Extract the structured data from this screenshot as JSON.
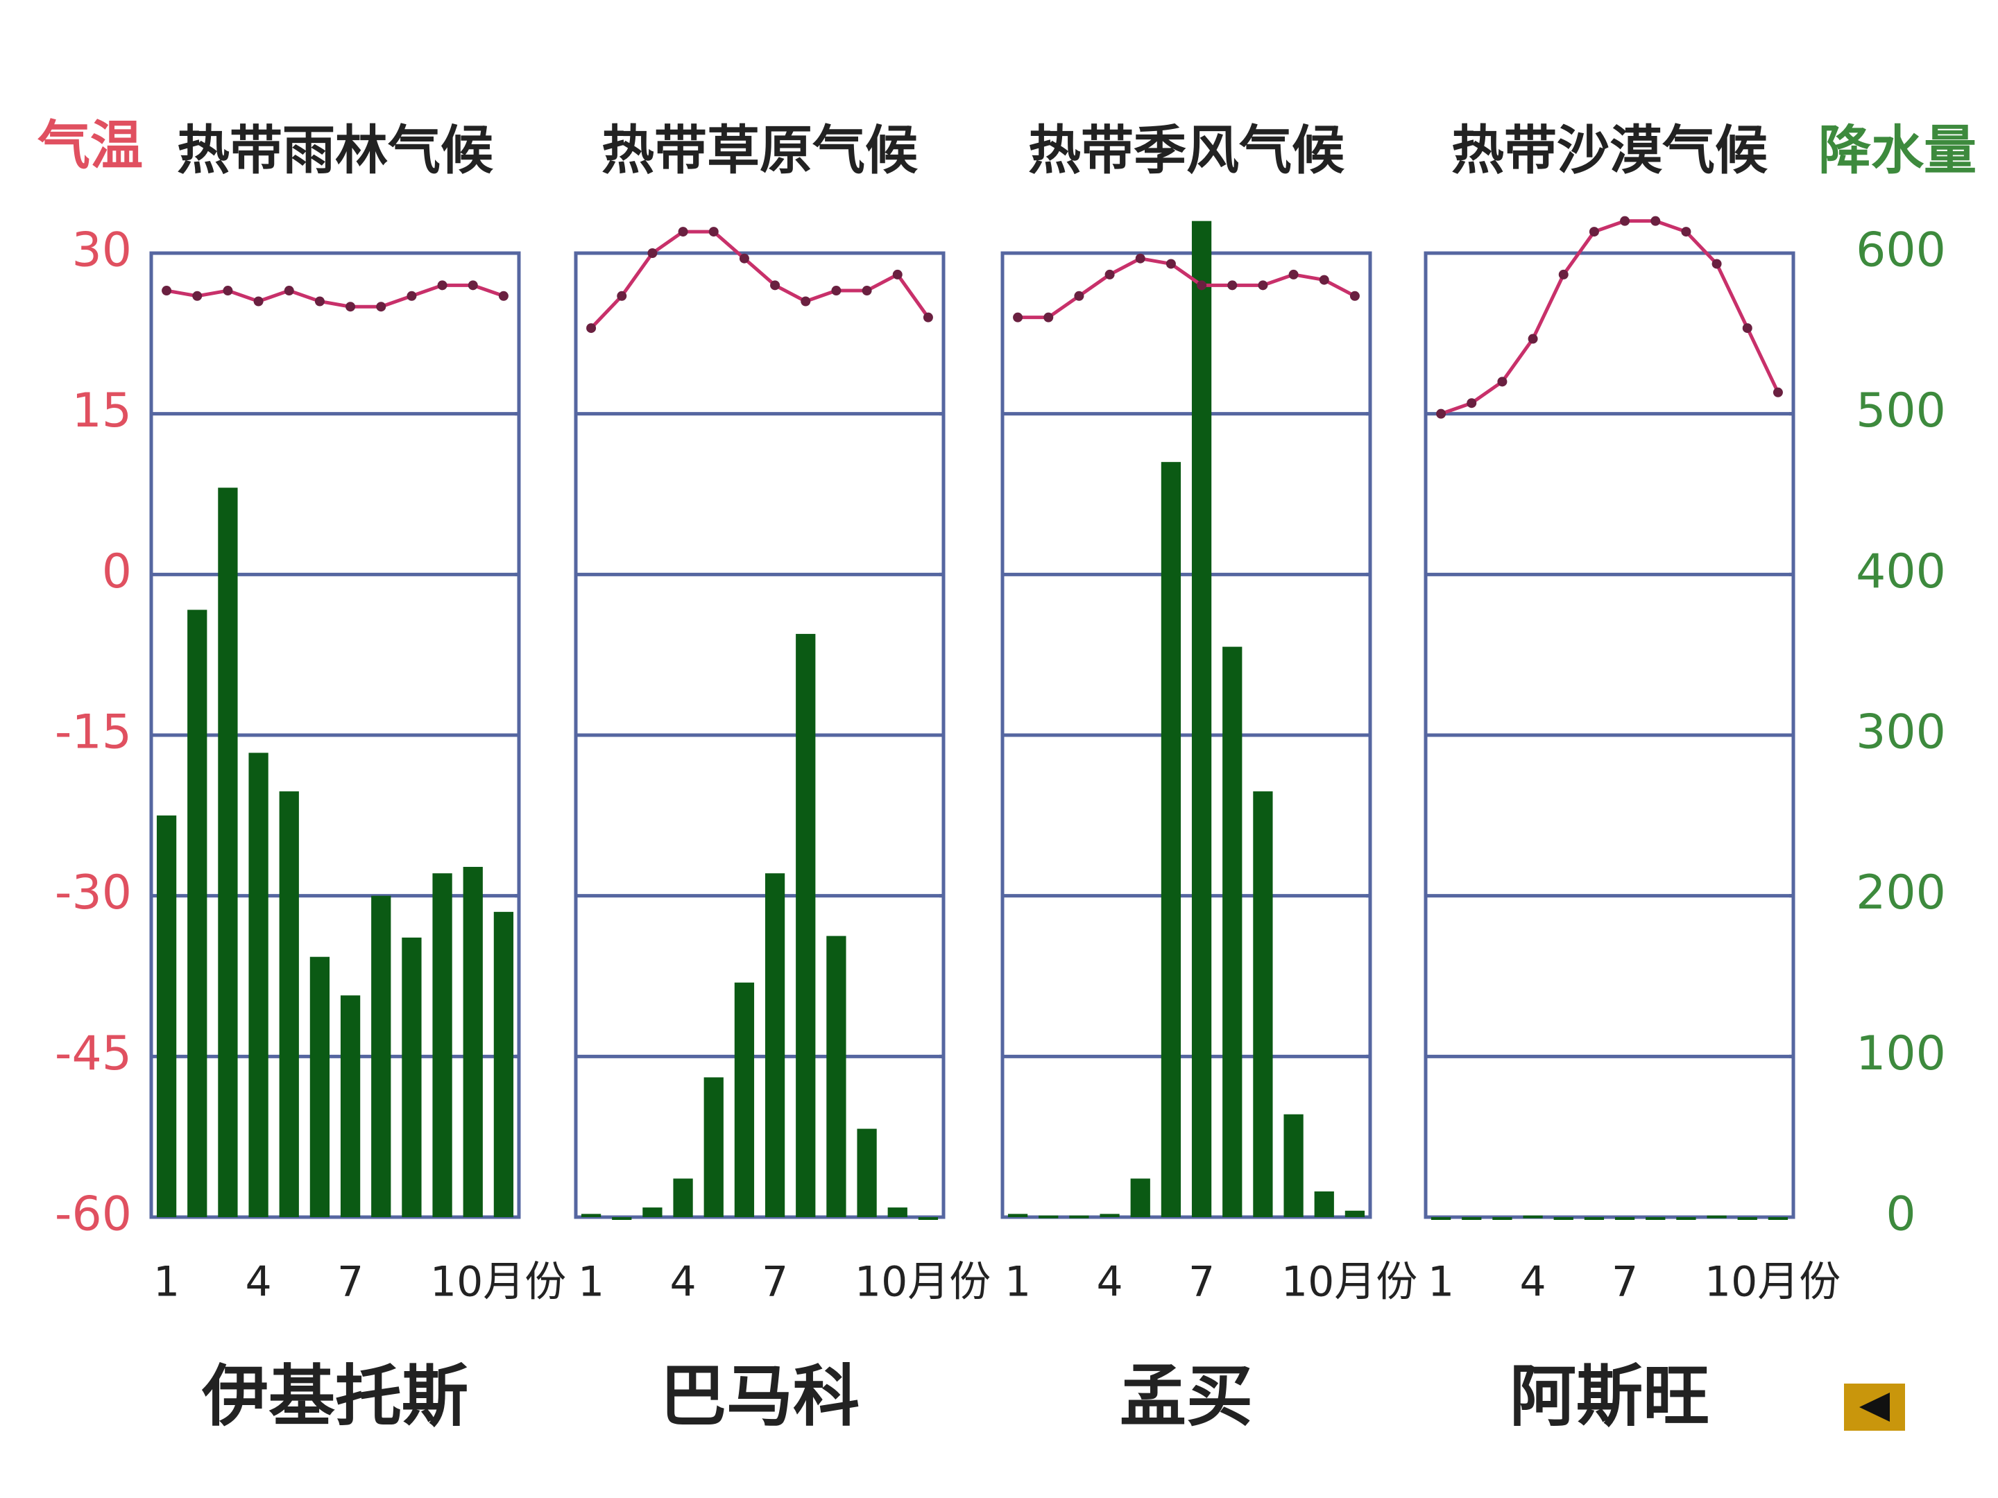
{
  "chart_data": [
    {
      "type": "bar",
      "title": "热带雨林气候",
      "city": "伊基托斯",
      "y_label": "气温",
      "categories": [
        "1",
        null,
        null,
        "4",
        null,
        null,
        "7",
        null,
        null,
        "10月份",
        null,
        null
      ],
      "series": [
        {
          "name": "降水量",
          "color": "#0b5a14",
          "axis": "y2",
          "values": [
            250,
            378,
            454,
            289,
            265,
            162,
            138,
            200,
            174,
            214,
            218,
            190
          ]
        },
        {
          "name": "气温",
          "color": "#c8306a",
          "axis": "y",
          "values": [
            26.5,
            26,
            26.5,
            25.5,
            26.5,
            25.5,
            25,
            25,
            26,
            27,
            27,
            26
          ]
        }
      ],
      "ylim": [
        -60,
        30
      ],
      "yticks": [
        -60,
        -45,
        -30,
        -15,
        0,
        15,
        30
      ],
      "y2lim": [
        0,
        600
      ],
      "y2ticks": [
        0,
        100,
        200,
        300,
        400,
        500,
        600
      ],
      "grid": true
    },
    {
      "type": "bar",
      "title": "热带草原气候",
      "city": "巴马科",
      "categories": [
        "1",
        null,
        null,
        "4",
        null,
        null,
        "7",
        null,
        null,
        "10月份",
        null,
        null
      ],
      "series": [
        {
          "name": "降水量",
          "color": "#0b5a14",
          "axis": "y2",
          "values": [
            2,
            0,
            6,
            24,
            87,
            146,
            214,
            363,
            175,
            55,
            6,
            0
          ]
        },
        {
          "name": "气温",
          "color": "#c8306a",
          "axis": "y",
          "values": [
            23,
            26,
            30,
            32,
            32,
            29.5,
            27,
            25.5,
            26.5,
            26.5,
            28,
            24
          ]
        }
      ],
      "ylim": [
        -60,
        30
      ],
      "yticks": [
        -60,
        -45,
        -30,
        -15,
        0,
        15,
        30
      ],
      "y2lim": [
        0,
        600
      ],
      "y2ticks": [
        0,
        100,
        200,
        300,
        400,
        500,
        600
      ],
      "grid": true
    },
    {
      "type": "bar",
      "title": "热带季风气候",
      "city": "孟买",
      "categories": [
        "1",
        null,
        null,
        "4",
        null,
        null,
        "7",
        null,
        null,
        "10月份",
        null,
        null
      ],
      "series": [
        {
          "name": "降水量",
          "color": "#0b5a14",
          "axis": "y2",
          "values": [
            2,
            1,
            1,
            2,
            24,
            470,
            620,
            355,
            265,
            64,
            16,
            4
          ]
        },
        {
          "name": "气温",
          "color": "#c8306a",
          "axis": "y",
          "values": [
            24,
            24,
            26,
            28,
            29.5,
            29,
            27,
            27,
            27,
            28,
            27.5,
            26
          ]
        }
      ],
      "ylim": [
        -60,
        30
      ],
      "yticks": [
        -60,
        -45,
        -30,
        -15,
        0,
        15,
        30
      ],
      "y2lim": [
        0,
        600
      ],
      "y2ticks": [
        0,
        100,
        200,
        300,
        400,
        500,
        600
      ],
      "grid": true
    },
    {
      "type": "bar",
      "title": "热带沙漠气候",
      "city": "阿斯旺",
      "y2_label": "降水量",
      "categories": [
        "1",
        null,
        null,
        "4",
        null,
        null,
        "7",
        null,
        null,
        "10月份",
        null,
        null
      ],
      "series": [
        {
          "name": "降水量",
          "color": "#0b5a14",
          "axis": "y2",
          "values": [
            0,
            0,
            0,
            1,
            0,
            0,
            0,
            0,
            0,
            1,
            0,
            0
          ]
        },
        {
          "name": "气温",
          "color": "#c8306a",
          "axis": "y",
          "values": [
            15,
            16,
            18,
            22,
            28,
            32,
            33,
            33,
            32,
            29,
            23,
            17
          ]
        }
      ],
      "ylim": [
        -60,
        30
      ],
      "yticks": [
        -60,
        -45,
        -30,
        -15,
        0,
        15,
        30
      ],
      "y2lim": [
        0,
        600
      ],
      "y2ticks": [
        0,
        100,
        200,
        300,
        400,
        500,
        600
      ],
      "grid": true
    }
  ]
}
